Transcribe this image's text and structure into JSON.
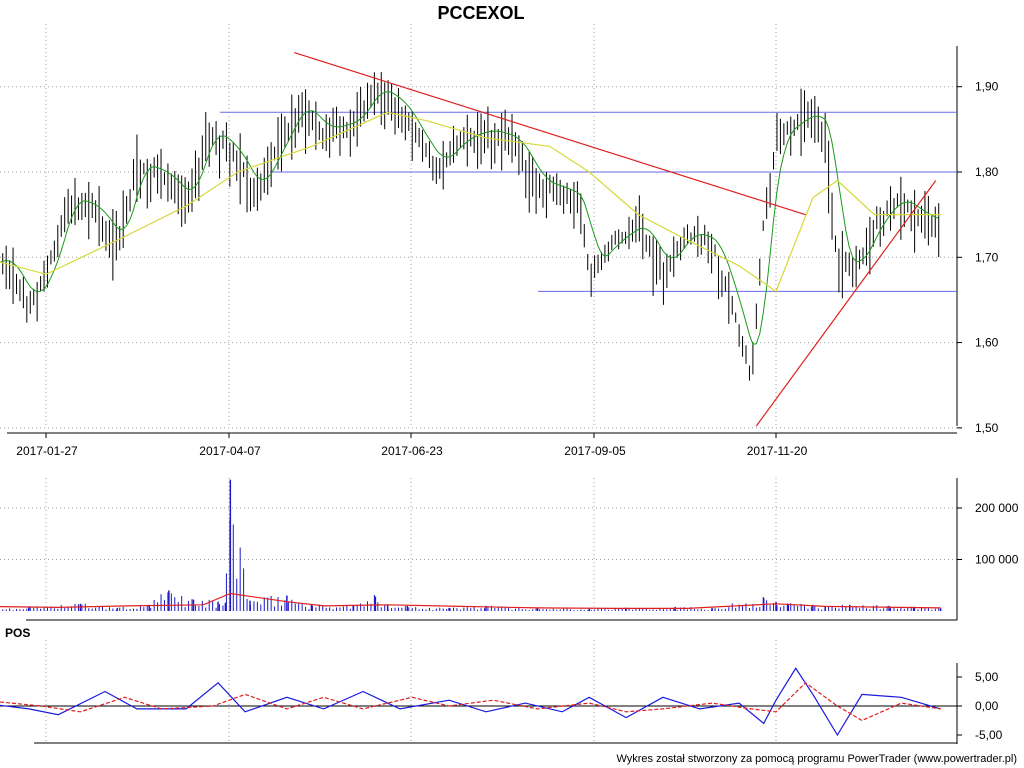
{
  "chart_data": [
    {
      "type": "ohlc",
      "title": "PCCEXOL",
      "ylim": [
        1.5,
        1.96
      ],
      "y_ticks": [
        "1,50",
        "1,60",
        "1,70",
        "1,80",
        "1,90"
      ],
      "x_ticks": [
        "2017-01-27",
        "2017-04-07",
        "2017-06-23",
        "2017-09-05",
        "2017-11-20"
      ],
      "horizontal_levels": [
        1.66,
        1.8,
        1.87
      ],
      "trendlines": [
        {
          "from": [
            "2017-05-08",
            1.94
          ],
          "to": [
            "2017-12-02",
            1.75
          ]
        },
        {
          "from": [
            "2017-11-12",
            1.5
          ],
          "to": [
            "2018-01-24",
            1.79
          ]
        }
      ],
      "series": [
        {
          "id": "price",
          "points": [
            [
              "2017-01-01",
              1.69
            ],
            [
              "2017-01-10",
              1.7
            ],
            [
              "2017-01-20",
              1.65
            ],
            [
              "2017-01-27",
              1.68
            ],
            [
              "2017-02-05",
              1.77
            ],
            [
              "2017-02-15",
              1.76
            ],
            [
              "2017-02-25",
              1.72
            ],
            [
              "2017-03-05",
              1.81
            ],
            [
              "2017-03-15",
              1.8
            ],
            [
              "2017-03-25",
              1.77
            ],
            [
              "2017-04-03",
              1.85
            ],
            [
              "2017-04-12",
              1.83
            ],
            [
              "2017-04-22",
              1.78
            ],
            [
              "2017-05-01",
              1.83
            ],
            [
              "2017-05-10",
              1.88
            ],
            [
              "2017-05-20",
              1.85
            ],
            [
              "2017-06-01",
              1.86
            ],
            [
              "2017-06-10",
              1.9
            ],
            [
              "2017-06-20",
              1.88
            ],
            [
              "2017-06-28",
              1.84
            ],
            [
              "2017-07-05",
              1.81
            ],
            [
              "2017-07-15",
              1.84
            ],
            [
              "2017-07-25",
              1.85
            ],
            [
              "2017-08-05",
              1.84
            ],
            [
              "2017-08-15",
              1.79
            ],
            [
              "2017-08-25",
              1.78
            ],
            [
              "2017-09-01",
              1.77
            ],
            [
              "2017-09-05",
              1.69
            ],
            [
              "2017-09-15",
              1.72
            ],
            [
              "2017-09-25",
              1.74
            ],
            [
              "2017-10-05",
              1.69
            ],
            [
              "2017-10-15",
              1.73
            ],
            [
              "2017-10-25",
              1.72
            ],
            [
              "2017-11-03",
              1.64
            ],
            [
              "2017-11-10",
              1.56
            ],
            [
              "2017-11-15",
              1.75
            ],
            [
              "2017-11-20",
              1.84
            ],
            [
              "2017-11-28",
              1.86
            ],
            [
              "2017-12-05",
              1.87
            ],
            [
              "2017-12-10",
              1.85
            ],
            [
              "2017-12-15",
              1.7
            ],
            [
              "2017-12-22",
              1.69
            ],
            [
              "2017-12-30",
              1.74
            ],
            [
              "2018-01-08",
              1.77
            ],
            [
              "2018-01-18",
              1.75
            ],
            [
              "2018-01-26",
              1.74
            ]
          ]
        },
        {
          "id": "moving-average",
          "points": [
            [
              "2017-01-01",
              1.7
            ],
            [
              "2017-01-27",
              1.68
            ],
            [
              "2017-02-25",
              1.72
            ],
            [
              "2017-03-25",
              1.76
            ],
            [
              "2017-04-15",
              1.8
            ],
            [
              "2017-05-15",
              1.83
            ],
            [
              "2017-06-15",
              1.87
            ],
            [
              "2017-07-01",
              1.86
            ],
            [
              "2017-07-25",
              1.84
            ],
            [
              "2017-08-20",
              1.83
            ],
            [
              "2017-09-05",
              1.8
            ],
            [
              "2017-09-25",
              1.75
            ],
            [
              "2017-10-15",
              1.72
            ],
            [
              "2017-11-05",
              1.69
            ],
            [
              "2017-11-20",
              1.66
            ],
            [
              "2017-12-05",
              1.77
            ],
            [
              "2017-12-15",
              1.79
            ],
            [
              "2017-12-30",
              1.75
            ],
            [
              "2018-01-15",
              1.75
            ],
            [
              "2018-01-26",
              1.75
            ]
          ]
        }
      ]
    },
    {
      "type": "bar",
      "y_ticks": [
        "100 000",
        "200 000"
      ],
      "volume_points": [
        [
          "2017-01-01",
          5000
        ],
        [
          "2017-01-20",
          8000
        ],
        [
          "2017-02-10",
          14000
        ],
        [
          "2017-02-25",
          6000
        ],
        [
          "2017-03-10",
          12000
        ],
        [
          "2017-03-18",
          40000
        ],
        [
          "2017-03-28",
          22000
        ],
        [
          "2017-04-07",
          18000
        ],
        [
          "2017-04-10",
          16000
        ],
        [
          "2017-04-12",
          255000
        ],
        [
          "2017-04-20",
          20000
        ],
        [
          "2017-05-05",
          30000
        ],
        [
          "2017-05-15",
          12000
        ],
        [
          "2017-06-01",
          10000
        ],
        [
          "2017-06-10",
          28000
        ],
        [
          "2017-06-15",
          12000
        ],
        [
          "2017-06-23",
          10000
        ],
        [
          "2017-07-10",
          6000
        ],
        [
          "2017-07-25",
          10000
        ],
        [
          "2017-08-15",
          5000
        ],
        [
          "2017-09-05",
          6000
        ],
        [
          "2017-09-20",
          6000
        ],
        [
          "2017-10-10",
          8000
        ],
        [
          "2017-10-25",
          6000
        ],
        [
          "2017-11-15",
          25000
        ],
        [
          "2017-11-20",
          18000
        ],
        [
          "2017-11-25",
          14000
        ],
        [
          "2017-12-05",
          12000
        ],
        [
          "2017-12-10",
          8000
        ],
        [
          "2017-12-20",
          12000
        ],
        [
          "2018-01-05",
          10000
        ],
        [
          "2018-01-15",
          8000
        ],
        [
          "2018-01-26",
          5000
        ]
      ],
      "average_points": [
        [
          "2017-01-01",
          9000
        ],
        [
          "2017-02-01",
          7000
        ],
        [
          "2017-03-01",
          10000
        ],
        [
          "2017-04-01",
          12000
        ],
        [
          "2017-04-12",
          34000
        ],
        [
          "2017-05-05",
          18000
        ],
        [
          "2017-05-20",
          10000
        ],
        [
          "2017-06-15",
          12000
        ],
        [
          "2017-07-15",
          9000
        ],
        [
          "2017-08-15",
          6000
        ],
        [
          "2017-09-15",
          5000
        ],
        [
          "2017-10-15",
          5000
        ],
        [
          "2017-11-20",
          14000
        ],
        [
          "2017-12-10",
          9000
        ],
        [
          "2018-01-26",
          6000
        ]
      ]
    },
    {
      "type": "line",
      "title": "POS",
      "ylim": [
        -6,
        7
      ],
      "y_ticks": [
        "-5,00",
        "0,00",
        "5,00"
      ],
      "series": [
        {
          "id": "pos",
          "points": [
            [
              "2017-01-01",
              0.5
            ],
            [
              "2017-01-20",
              -0.5
            ],
            [
              "2017-02-01",
              -1.5
            ],
            [
              "2017-02-20",
              2.5
            ],
            [
              "2017-03-05",
              -0.5
            ],
            [
              "2017-03-25",
              -0.5
            ],
            [
              "2017-04-07",
              4
            ],
            [
              "2017-04-18",
              -1
            ],
            [
              "2017-05-05",
              1.5
            ],
            [
              "2017-05-20",
              -0.5
            ],
            [
              "2017-06-05",
              2.5
            ],
            [
              "2017-06-20",
              -0.5
            ],
            [
              "2017-07-10",
              1
            ],
            [
              "2017-07-25",
              -1
            ],
            [
              "2017-08-10",
              0.5
            ],
            [
              "2017-08-25",
              -1
            ],
            [
              "2017-09-05",
              1.5
            ],
            [
              "2017-09-20",
              -2
            ],
            [
              "2017-10-05",
              1.5
            ],
            [
              "2017-10-20",
              -0.5
            ],
            [
              "2017-11-05",
              0.5
            ],
            [
              "2017-11-15",
              -3
            ],
            [
              "2017-11-20",
              1
            ],
            [
              "2017-11-28",
              6.5
            ],
            [
              "2017-12-05",
              2
            ],
            [
              "2017-12-15",
              -5
            ],
            [
              "2017-12-25",
              2
            ],
            [
              "2018-01-10",
              1.5
            ],
            [
              "2018-01-26",
              -0.5
            ]
          ]
        },
        {
          "id": "pos-signal",
          "points": [
            [
              "2017-01-01",
              1
            ],
            [
              "2017-01-25",
              0
            ],
            [
              "2017-02-10",
              -1
            ],
            [
              "2017-02-28",
              1.5
            ],
            [
              "2017-03-15",
              -0.5
            ],
            [
              "2017-04-05",
              0
            ],
            [
              "2017-04-18",
              2
            ],
            [
              "2017-05-05",
              -0.5
            ],
            [
              "2017-05-20",
              1.5
            ],
            [
              "2017-06-05",
              -0.5
            ],
            [
              "2017-06-25",
              1.5
            ],
            [
              "2017-07-10",
              0
            ],
            [
              "2017-07-28",
              1
            ],
            [
              "2017-08-15",
              -0.5
            ],
            [
              "2017-09-05",
              0.5
            ],
            [
              "2017-09-20",
              -1
            ],
            [
              "2017-10-05",
              -0.5
            ],
            [
              "2017-10-25",
              0.5
            ],
            [
              "2017-11-10",
              -0.5
            ],
            [
              "2017-11-20",
              -1
            ],
            [
              "2017-12-02",
              4
            ],
            [
              "2017-12-15",
              0
            ],
            [
              "2017-12-25",
              -2.5
            ],
            [
              "2018-01-10",
              0.5
            ],
            [
              "2018-01-26",
              -0.5
            ]
          ]
        }
      ]
    }
  ],
  "footer": "Wykres został stworzony za pomocą programu PowerTrader (www.powertrader.pl)",
  "colors": {
    "price": "#000000",
    "moving_average": "#d8d838",
    "short_average": "#1a9a1a",
    "level_line": "#6a6ae8",
    "trendline": "#e02020",
    "volume_bar": "#1a1ac8",
    "volume_average": "#e02020",
    "pos": "#1a1ae0",
    "pos_signal": "#e02020",
    "grid": "#a0a0a0"
  }
}
